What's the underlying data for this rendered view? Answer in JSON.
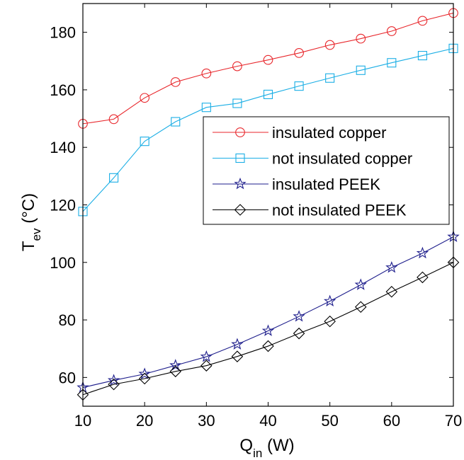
{
  "chart_data": {
    "type": "line",
    "xlabel": {
      "main": "Q",
      "sub": "in",
      "unit": " (W)"
    },
    "ylabel": {
      "main": "T",
      "sub": "ev",
      "unit": " (°C)"
    },
    "xlim": [
      10,
      70
    ],
    "ylim": [
      50,
      190
    ],
    "xticks": [
      10,
      20,
      30,
      40,
      50,
      60,
      70
    ],
    "yticks": [
      60,
      80,
      100,
      120,
      140,
      160,
      180
    ],
    "grid": false,
    "legend_position": "center-right",
    "x": [
      10,
      15,
      20,
      25,
      30,
      35,
      40,
      45,
      50,
      55,
      60,
      65,
      70
    ],
    "series": [
      {
        "name": "insulated copper",
        "color": "#e8262b",
        "marker": "circle",
        "values": [
          148.2,
          149.8,
          157.2,
          162.7,
          165.7,
          168.2,
          170.4,
          172.8,
          175.6,
          177.8,
          180.4,
          184.0,
          186.7
        ]
      },
      {
        "name": "not insulated copper",
        "color": "#1aaee5",
        "marker": "square",
        "values": [
          117.7,
          129.4,
          142.1,
          148.9,
          153.9,
          155.3,
          158.4,
          161.3,
          164.1,
          166.8,
          169.4,
          171.9,
          174.4
        ]
      },
      {
        "name": "insulated PEEK",
        "color": "#1e1e8c",
        "marker": "star",
        "values": [
          56.5,
          59.0,
          61.2,
          64.2,
          67.2,
          71.5,
          76.2,
          81.2,
          86.5,
          92.2,
          98.2,
          103.2,
          108.9
        ]
      },
      {
        "name": "not insulated PEEK",
        "color": "#000000",
        "marker": "diamond",
        "values": [
          54.0,
          57.6,
          59.6,
          62.1,
          64.1,
          67.3,
          70.9,
          75.3,
          79.5,
          84.5,
          89.8,
          94.8,
          100.0
        ]
      }
    ]
  }
}
